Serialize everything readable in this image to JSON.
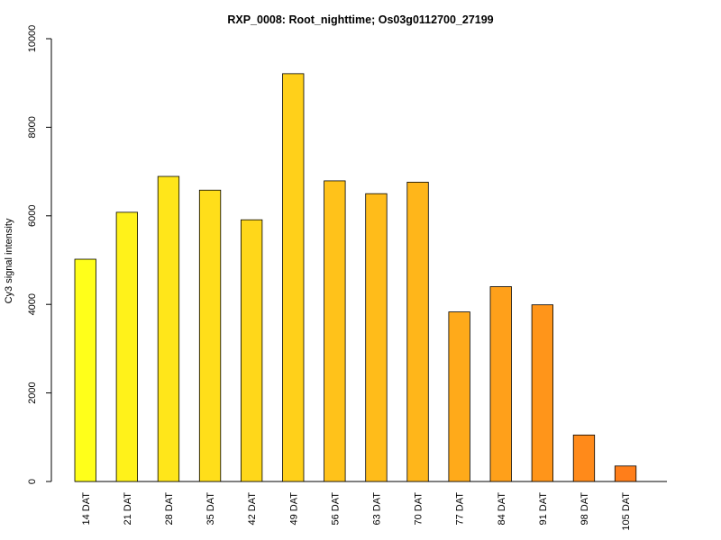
{
  "chart_data": {
    "type": "bar",
    "title": "RXP_0008: Root_nighttime; Os03g0112700_27199",
    "xlabel": "",
    "ylabel": "Cy3 signal intensity",
    "ylim": [
      0,
      10000
    ],
    "yticks": [
      0,
      2000,
      4000,
      6000,
      8000,
      10000
    ],
    "categories": [
      "14 DAT",
      "21 DAT",
      "28 DAT",
      "35 DAT",
      "42 DAT",
      "49 DAT",
      "56 DAT",
      "63 DAT",
      "70 DAT",
      "77 DAT",
      "84 DAT",
      "91 DAT",
      "98 DAT",
      "105 DAT"
    ],
    "values": [
      5020,
      6080,
      6890,
      6580,
      5910,
      9210,
      6790,
      6500,
      6760,
      3830,
      4400,
      3990,
      1050,
      350
    ],
    "colors": [
      "#FFFF1A",
      "#FFF21A",
      "#FFE61A",
      "#FFDE1A",
      "#FFD71A",
      "#FFD01A",
      "#FFC21A",
      "#FFBC1A",
      "#FFB61A",
      "#FFAA1A",
      "#FFA01A",
      "#FF951A",
      "#FF8A1A",
      "#FF7E1A"
    ],
    "grid": false,
    "legend": "none"
  }
}
